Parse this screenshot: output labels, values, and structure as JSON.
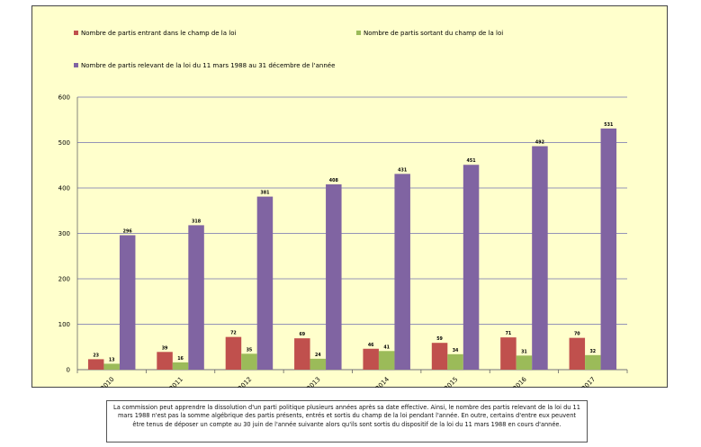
{
  "chart_data": {
    "type": "bar",
    "categories": [
      "2010",
      "2011",
      "2012",
      "2013",
      "2014",
      "2015",
      "2016",
      "2017"
    ],
    "series": [
      {
        "name": "Nombre de partis entrant dans le champ de la loi",
        "color": "#c0504d",
        "values": [
          23,
          39,
          72,
          69,
          46,
          59,
          71,
          70
        ]
      },
      {
        "name": "Nombre de partis sortant du champ de la loi",
        "color": "#9bbb59",
        "values": [
          13,
          16,
          35,
          24,
          41,
          34,
          31,
          32
        ]
      },
      {
        "name": "Nombre de partis relevant de la loi du 11 mars 1988 au 31 décembre de l'année",
        "color": "#8064a2",
        "values": [
          296,
          318,
          381,
          408,
          431,
          451,
          492,
          531
        ]
      }
    ],
    "ylim": [
      0,
      600
    ],
    "yticks": [
      0,
      100,
      200,
      300,
      400,
      500,
      600
    ],
    "grid": true,
    "legend": "top",
    "title": "",
    "xlabel": "",
    "ylabel": ""
  },
  "colors": {
    "plot_background": "#ffffcc",
    "gridline": "#7070b0",
    "frame_border": "#444444"
  },
  "caption": "La commission peut apprendre la dissolution d'un parti politique plusieurs années après sa date effective.  Ainsi, le nombre des partis relevant de la loi du 11 mars 1988 n'est pas la somme algébrique des partis présents, entrés et sortis du champ de la loi pendant l'année. En outre, certains d'entre eux peuvent être tenus de déposer un compte au 30 juin de l'année suivante alors qu'ils sont sortis du dispositif de la loi du 11 mars 1988 en cours d'année."
}
